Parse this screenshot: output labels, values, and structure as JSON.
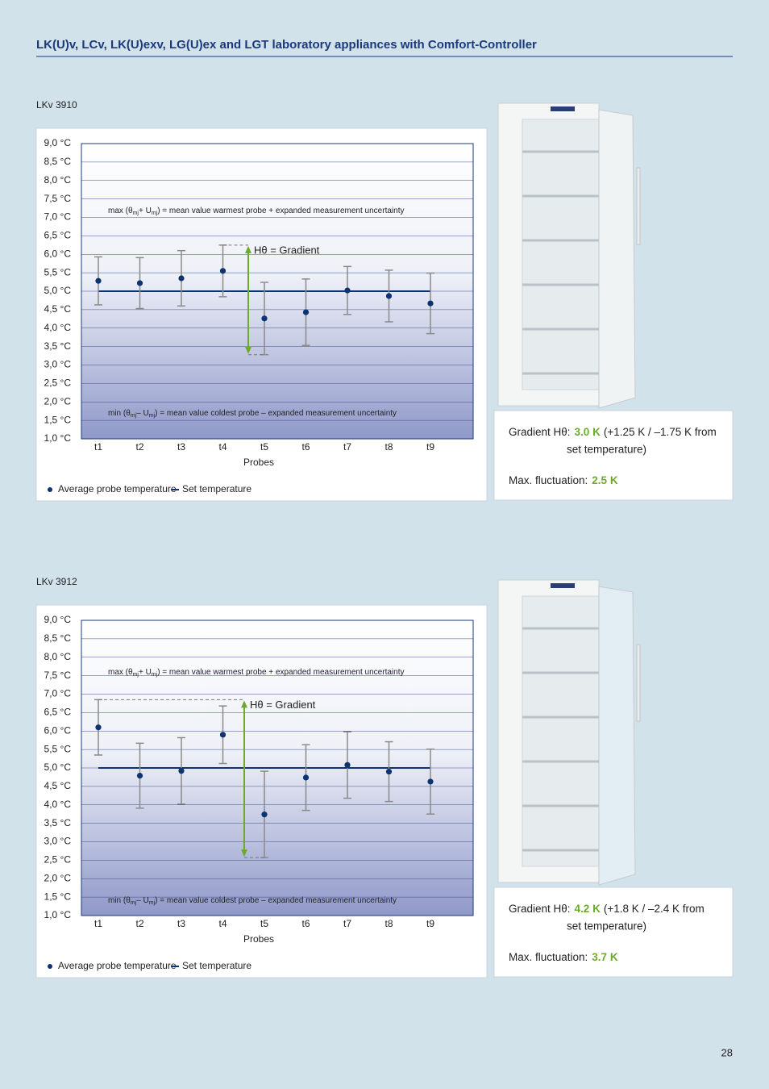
{
  "title": "LK(U)v, LCv, LK(U)exv, LG(U)ex and LGT laboratory appliances with Comfort-Controller",
  "page_number": "28",
  "models": [
    {
      "name": "LKv 3910",
      "info": {
        "gradient_label": "Gradient Hθ:",
        "gradient_value": "3.0 K",
        "gradient_detail": "(+1.25 K / –1.75 K from",
        "gradient_detail_2": "set temperature)",
        "fluctuation_label": "Max. fluctuation:",
        "fluctuation_value": "2.5 K"
      }
    },
    {
      "name": "LKv 3912",
      "info": {
        "gradient_label": "Gradient Hθ:",
        "gradient_value": "4.2 K",
        "gradient_detail": "(+1.8 K / –2.4 K from",
        "gradient_detail_2": "set temperature)",
        "fluctuation_label": "Max. fluctuation:",
        "fluctuation_value": "3.7 K"
      }
    }
  ],
  "chart_data": [
    {
      "type": "errorbar",
      "categories": [
        "t1",
        "t2",
        "t3",
        "t4",
        "t5",
        "t6",
        "t7",
        "t8",
        "t9"
      ],
      "series": [
        {
          "name": "Average probe temperature",
          "color": "#0d3471",
          "values": [
            5.28,
            5.22,
            5.35,
            5.55,
            4.26,
            4.43,
            5.02,
            4.87,
            4.67
          ],
          "errors": [
            0.65,
            0.69,
            0.75,
            0.7,
            0.98,
            0.9,
            0.65,
            0.7,
            0.82
          ]
        }
      ],
      "set_temperature": {
        "name": "Set temperature",
        "value": 5,
        "color": "#0d3471"
      },
      "ylim": [
        1,
        9
      ],
      "yticks": [
        {
          "value": 1,
          "label": "1,0 °C"
        },
        {
          "value": 1.5,
          "label": "1,5 °C"
        },
        {
          "value": 2,
          "label": "2,0 °C"
        },
        {
          "value": 2.5,
          "label": "2,5 °C"
        },
        {
          "value": 3,
          "label": "3,0 °C"
        },
        {
          "value": 3.5,
          "label": "3,5 °C"
        },
        {
          "value": 4,
          "label": "4,0 °C"
        },
        {
          "value": 4.5,
          "label": "4,5 °C"
        },
        {
          "value": 5,
          "label": "5,0 °C"
        },
        {
          "value": 5.5,
          "label": "5,5 °C"
        },
        {
          "value": 6,
          "label": "6,0 °C"
        },
        {
          "value": 6.5,
          "label": "6,5 °C"
        },
        {
          "value": 7,
          "label": "7,0 °C"
        },
        {
          "value": 7.5,
          "label": "7,5 °C"
        },
        {
          "value": 8,
          "label": "8,0 °C"
        },
        {
          "value": 8.5,
          "label": "8,5 °C"
        },
        {
          "value": 9,
          "label": "9,0 °C"
        }
      ],
      "grid": true,
      "xlabel": "Probes",
      "max_annotation": [
        "max (θ",
        "mj",
        "+ U",
        "mj",
        ") = mean value warmest probe + expanded measurement uncertainty"
      ],
      "min_annotation": [
        "min (θ",
        "mj",
        "– U",
        "mj",
        ") = mean value coldest probe – expanded measurement uncertainty"
      ],
      "gradient_label": "Hθ = Gradient",
      "gradient_color": "#6aab2b"
    },
    {
      "type": "errorbar",
      "categories": [
        "t1",
        "t2",
        "t3",
        "t4",
        "t5",
        "t6",
        "t7",
        "t8",
        "t9"
      ],
      "series": [
        {
          "name": "Average probe temperature",
          "color": "#0d3471",
          "values": [
            6.1,
            4.79,
            4.92,
            5.9,
            3.74,
            4.74,
            5.08,
            4.9,
            4.63
          ],
          "errors": [
            0.75,
            0.88,
            0.9,
            0.78,
            1.17,
            0.89,
            0.9,
            0.81,
            0.88
          ]
        }
      ],
      "set_temperature": {
        "name": "Set temperature",
        "value": 5,
        "color": "#0d3471"
      },
      "ylim": [
        1,
        9
      ],
      "yticks": [
        {
          "value": 1,
          "label": "1,0 °C"
        },
        {
          "value": 1.5,
          "label": "1,5 °C"
        },
        {
          "value": 2,
          "label": "2,0 °C"
        },
        {
          "value": 2.5,
          "label": "2,5 °C"
        },
        {
          "value": 3,
          "label": "3,0 °C"
        },
        {
          "value": 3.5,
          "label": "3,5 °C"
        },
        {
          "value": 4,
          "label": "4,0 °C"
        },
        {
          "value": 4.5,
          "label": "4,5 °C"
        },
        {
          "value": 5,
          "label": "5,0 °C"
        },
        {
          "value": 5.5,
          "label": "5,5 °C"
        },
        {
          "value": 6,
          "label": "6,0 °C"
        },
        {
          "value": 6.5,
          "label": "6,5 °C"
        },
        {
          "value": 7,
          "label": "7,0 °C"
        },
        {
          "value": 7.5,
          "label": "7,5 °C"
        },
        {
          "value": 8,
          "label": "8,0 °C"
        },
        {
          "value": 8.5,
          "label": "8,5 °C"
        },
        {
          "value": 9,
          "label": "9,0 °C"
        }
      ],
      "grid": true,
      "xlabel": "Probes",
      "max_annotation": [
        "max (θ",
        "mj",
        "+ U",
        "mj",
        ") = mean value warmest probe + expanded measurement uncertainty"
      ],
      "min_annotation": [
        "min (θ",
        "mj",
        "– U",
        "mj",
        ") = mean value coldest probe – expanded measurement uncertainty"
      ],
      "gradient_label": "Hθ = Gradient",
      "gradient_color": "#6aab2b"
    }
  ]
}
